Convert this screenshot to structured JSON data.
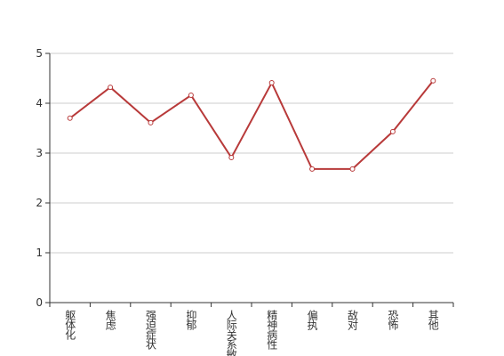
{
  "chart_data": {
    "type": "line",
    "categories": [
      "躯体化",
      "焦虑",
      "强迫症状",
      "抑郁",
      "人际关系敏感",
      "精神病性",
      "偏执",
      "敌对",
      "恐怖",
      "其他"
    ],
    "series": [
      {
        "color": "#b83a3a",
        "values": [
          3.7,
          4.32,
          3.61,
          4.16,
          2.91,
          4.41,
          2.68,
          2.68,
          3.43,
          4.45
        ]
      }
    ],
    "ylim": [
      0,
      5
    ],
    "yticks": [
      0,
      1,
      2,
      3,
      4,
      5
    ],
    "grid": true
  }
}
